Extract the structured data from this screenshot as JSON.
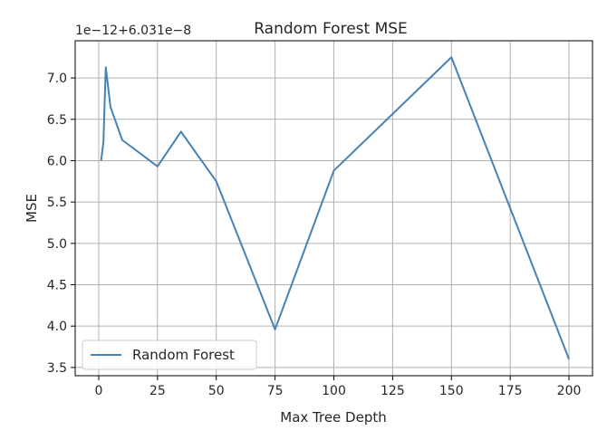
{
  "chart_data": {
    "type": "line",
    "title": "Random Forest MSE",
    "xlabel": "Max Tree Depth",
    "ylabel": "MSE",
    "y_offset_text": "1e−12+6.031e−8",
    "xlim": [
      -10,
      210
    ],
    "ylim": [
      3.4,
      7.45
    ],
    "x_ticks": [
      0,
      25,
      50,
      75,
      100,
      125,
      150,
      175,
      200
    ],
    "y_ticks": [
      3.5,
      4.0,
      4.5,
      5.0,
      5.5,
      6.0,
      6.5,
      7.0
    ],
    "y_tick_labels": [
      "3.5",
      "4.0",
      "4.5",
      "5.0",
      "5.5",
      "6.0",
      "6.5",
      "7.0"
    ],
    "grid": true,
    "legend_position": "lower-left",
    "series": [
      {
        "name": "Random Forest",
        "color": "#4682b4",
        "x": [
          1,
          2,
          3,
          5,
          10,
          25,
          35,
          50,
          75,
          100,
          150,
          200
        ],
        "y": [
          6.0,
          6.22,
          7.13,
          6.65,
          6.25,
          5.93,
          6.35,
          5.75,
          3.96,
          5.88,
          7.25,
          3.6
        ]
      }
    ]
  }
}
